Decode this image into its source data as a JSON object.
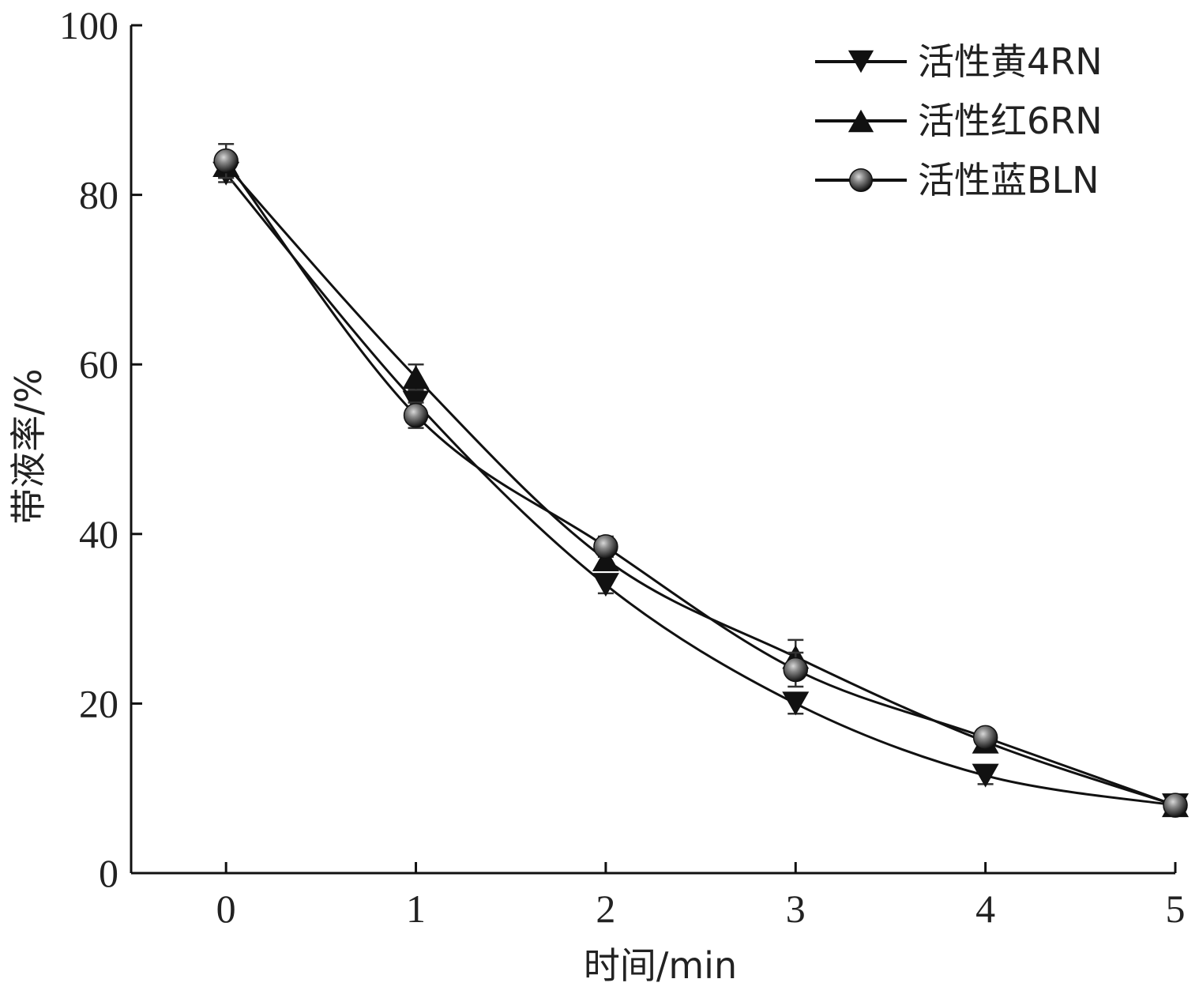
{
  "chart_data": {
    "type": "line",
    "title": "",
    "xlabel": "时间/min",
    "ylabel": "带液率/%",
    "xlim": [
      -0.5,
      5
    ],
    "ylim": [
      0,
      100
    ],
    "x_ticks": [
      0,
      1,
      2,
      3,
      4,
      5
    ],
    "y_ticks": [
      0,
      20,
      40,
      60,
      80,
      100
    ],
    "grid": false,
    "legend": "top-right",
    "x": [
      0,
      1,
      2,
      3,
      4,
      5
    ],
    "series": [
      {
        "name": "活性黄4RN",
        "marker": "triangle-down",
        "color": "#111111",
        "values": [
          82.5,
          55.5,
          34.0,
          20.0,
          11.5,
          8.0
        ],
        "errors": [
          1.0,
          1.2,
          1.0,
          1.2,
          1.0,
          0.8
        ]
      },
      {
        "name": "活性红6RN",
        "marker": "triangle-up",
        "color": "#111111",
        "values": [
          83.5,
          58.5,
          37.0,
          25.5,
          15.5,
          8.0
        ],
        "errors": [
          1.5,
          1.5,
          1.2,
          2.0,
          1.0,
          0.8
        ]
      },
      {
        "name": "活性蓝BLN",
        "marker": "circle",
        "color": "#111111",
        "values": [
          84.0,
          54.0,
          38.5,
          24.0,
          16.0,
          8.0
        ],
        "errors": [
          2.0,
          1.5,
          1.2,
          2.0,
          1.0,
          0.8
        ]
      }
    ]
  }
}
